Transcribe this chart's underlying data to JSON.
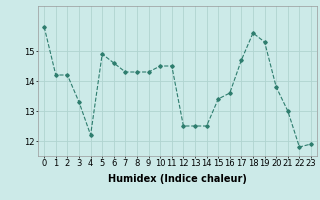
{
  "x": [
    0,
    1,
    2,
    3,
    4,
    5,
    6,
    7,
    8,
    9,
    10,
    11,
    12,
    13,
    14,
    15,
    16,
    17,
    18,
    19,
    20,
    21,
    22,
    23
  ],
  "y": [
    15.8,
    14.2,
    14.2,
    13.3,
    12.2,
    14.9,
    14.6,
    14.3,
    14.3,
    14.3,
    14.5,
    14.5,
    12.5,
    12.5,
    12.5,
    13.4,
    13.6,
    14.7,
    15.6,
    15.3,
    13.8,
    13.0,
    11.8,
    11.9
  ],
  "line_color": "#2e7d6e",
  "marker": "D",
  "marker_size": 1.8,
  "bg_color": "#cceae8",
  "grid_color": "#b0d4d0",
  "xlabel": "Humidex (Indice chaleur)",
  "xlabel_fontsize": 7,
  "tick_fontsize": 6,
  "ylim_min": 11.5,
  "ylim_max": 16.5,
  "xlim_min": -0.5,
  "xlim_max": 23.5,
  "yticks": [
    12,
    13,
    14,
    15
  ],
  "xticks": [
    0,
    1,
    2,
    3,
    4,
    5,
    6,
    7,
    8,
    9,
    10,
    11,
    12,
    13,
    14,
    15,
    16,
    17,
    18,
    19,
    20,
    21,
    22,
    23
  ]
}
